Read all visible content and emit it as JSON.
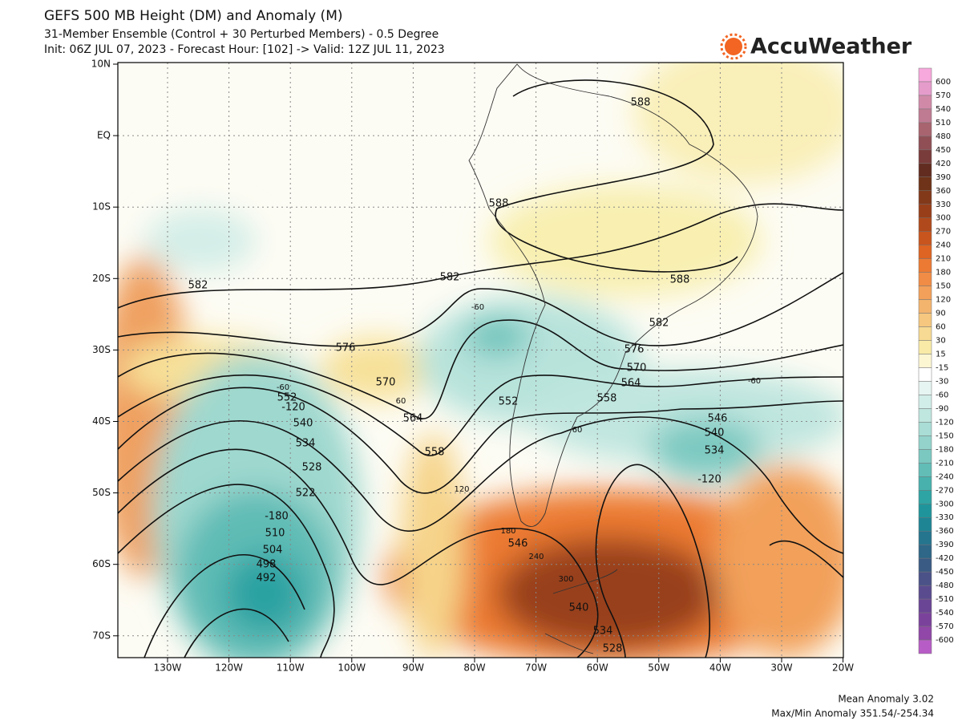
{
  "header": {
    "title": "GEFS 500 MB Height (DM) and Anomaly (M)",
    "subtitle": "31-Member Ensemble (Control + 30 Perturbed Members) - 0.5 Degree",
    "init": "Init: 06Z JUL 07, 2023 - Forecast Hour: [102] -> Valid: 12Z JUL 11, 2023",
    "logo": "AccuWeather"
  },
  "map": {
    "lat_labels": [
      "10N",
      "EQ",
      "10S",
      "20S",
      "30S",
      "40S",
      "50S",
      "60S",
      "70S"
    ],
    "lon_labels": [
      "130W",
      "120W",
      "110W",
      "100W",
      "90W",
      "80W",
      "70W",
      "60W",
      "50W",
      "40W",
      "30W",
      "20W"
    ],
    "contour_labels": [
      "588",
      "588",
      "582",
      "582",
      "588",
      "582",
      "-60",
      "576",
      "576",
      "570",
      "570",
      "564",
      "-60",
      "-60",
      "552",
      "60",
      "-120",
      "552",
      "558",
      "564",
      "540",
      "546",
      "60",
      "540",
      "534",
      "558",
      "534",
      "528",
      "-120",
      "120",
      "522",
      "-180",
      "180",
      "510",
      "546",
      "240",
      "504",
      "498",
      "492",
      "300",
      "540",
      "534",
      "528"
    ]
  },
  "colorbar": {
    "labels": [
      "600",
      "570",
      "540",
      "510",
      "480",
      "450",
      "420",
      "390",
      "360",
      "330",
      "300",
      "270",
      "240",
      "210",
      "180",
      "150",
      "120",
      "90",
      "60",
      "30",
      "15",
      "-15",
      "-30",
      "-60",
      "-90",
      "-120",
      "-150",
      "-180",
      "-210",
      "-240",
      "-270",
      "-300",
      "-330",
      "-360",
      "-390",
      "-420",
      "-450",
      "-480",
      "-510",
      "-540",
      "-570",
      "-600"
    ],
    "colors": [
      "#f7a8dc",
      "#e59ccb",
      "#d08aa8",
      "#bf7b92",
      "#a8646f",
      "#8f4f55",
      "#7a3b3b",
      "#622c20",
      "#6e3318",
      "#82391a",
      "#983f1a",
      "#b04a1c",
      "#c8551e",
      "#dd6422",
      "#ec7a33",
      "#f08c46",
      "#f2a05a",
      "#f3b46e",
      "#f5c77f",
      "#f7da93",
      "#f9eba7",
      "#fdf6d3",
      "#ffffff",
      "#e6f5f1",
      "#d2eee8",
      "#bfe6df",
      "#a9ddd5",
      "#93d3cb",
      "#7bc8c1",
      "#62bdb7",
      "#48b1ad",
      "#2fa4a4",
      "#1f959b",
      "#1e8595",
      "#25758e",
      "#2e6787",
      "#3a5b84",
      "#4a5288",
      "#5a4b8f",
      "#6a4596",
      "#7b429c",
      "#9047a7",
      "#b75cc6"
    ]
  },
  "footer": {
    "mean": "Mean Anomaly 3.02",
    "maxmin": "Max/Min Anomaly 351.54/-254.34"
  }
}
